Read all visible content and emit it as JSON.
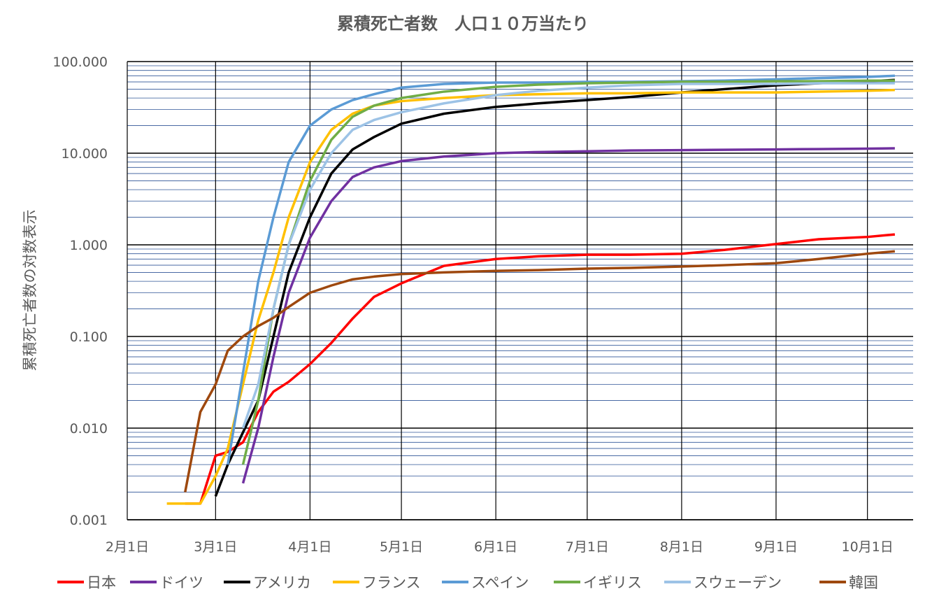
{
  "chart_data": {
    "type": "line",
    "title": "累積死亡者数　人口１０万当たり",
    "y_label": "累積死亡者数の対数表示",
    "log_scale": true,
    "grid": true,
    "legend_position": "bottom",
    "xlim": [
      "02-01",
      "10-16"
    ],
    "xticks": [
      {
        "value": "02-01",
        "label": "2月1日"
      },
      {
        "value": "03-01",
        "label": "3月1日"
      },
      {
        "value": "04-01",
        "label": "4月1日"
      },
      {
        "value": "05-01",
        "label": "5月1日"
      },
      {
        "value": "06-01",
        "label": "6月1日"
      },
      {
        "value": "07-01",
        "label": "7月1日"
      },
      {
        "value": "08-01",
        "label": "8月1日"
      },
      {
        "value": "09-01",
        "label": "9月1日"
      },
      {
        "value": "10-01",
        "label": "10月1日"
      }
    ],
    "ylim": [
      0.001,
      100
    ],
    "yticks": [
      {
        "value": 0.001,
        "label": "0.001"
      },
      {
        "value": 0.01,
        "label": "0.010"
      },
      {
        "value": 0.1,
        "label": "0.100"
      },
      {
        "value": 1,
        "label": "1.000"
      },
      {
        "value": 10,
        "label": "10.000"
      },
      {
        "value": 100,
        "label": "100.000"
      }
    ],
    "yminor": [
      0.002,
      0.003,
      0.004,
      0.005,
      0.006,
      0.007,
      0.008,
      0.009,
      0.02,
      0.03,
      0.04,
      0.05,
      0.06,
      0.07,
      0.08,
      0.09,
      0.2,
      0.3,
      0.4,
      0.5,
      0.6,
      0.7,
      0.8,
      0.9,
      2,
      3,
      4,
      5,
      6,
      7,
      8,
      9,
      20,
      30,
      40,
      50,
      60,
      70,
      80,
      90
    ],
    "x": [
      "02-14",
      "02-20",
      "02-25",
      "03-01",
      "03-05",
      "03-10",
      "03-15",
      "03-20",
      "03-25",
      "04-01",
      "04-08",
      "04-15",
      "04-22",
      "05-01",
      "05-15",
      "06-01",
      "06-15",
      "07-01",
      "07-15",
      "08-01",
      "08-15",
      "09-01",
      "09-15",
      "10-01",
      "10-10"
    ],
    "series": [
      {
        "name": "日本",
        "color": "#ff0000",
        "values": [
          null,
          0.0015,
          0.0015,
          0.005,
          0.0055,
          0.007,
          0.015,
          0.025,
          0.032,
          0.05,
          0.085,
          0.157,
          0.27,
          0.38,
          0.59,
          0.7,
          0.75,
          0.78,
          0.78,
          0.8,
          0.88,
          1.02,
          1.15,
          1.22,
          1.3
        ]
      },
      {
        "name": "ドイツ",
        "color": "#7030a0",
        "values": [
          null,
          null,
          null,
          null,
          null,
          0.0025,
          0.01,
          0.06,
          0.3,
          1.2,
          3,
          5.5,
          7,
          8.2,
          9.2,
          10,
          10.3,
          10.5,
          10.7,
          10.8,
          10.9,
          11,
          11.1,
          11.2,
          11.3
        ]
      },
      {
        "name": "アメリカ",
        "color": "#000000",
        "values": [
          null,
          null,
          null,
          0.0018,
          0.004,
          0.009,
          0.02,
          0.1,
          0.5,
          2,
          6,
          11,
          15,
          21,
          27,
          32,
          35,
          38,
          41,
          46,
          50,
          55,
          58,
          61,
          63
        ]
      },
      {
        "name": "フランス",
        "color": "#ffc000",
        "values": [
          0.0015,
          0.0015,
          0.0015,
          0.003,
          0.006,
          0.03,
          0.15,
          0.5,
          2,
          8,
          18,
          27,
          33,
          37,
          40,
          43,
          44,
          45,
          45,
          46,
          46,
          46,
          47,
          48,
          49
        ]
      },
      {
        "name": "スペイン",
        "color": "#5b9bd5",
        "values": [
          null,
          null,
          null,
          null,
          0.004,
          0.04,
          0.4,
          2,
          8,
          20,
          30,
          38,
          44,
          52,
          57,
          59,
          59,
          60,
          60,
          61,
          62,
          64,
          66,
          68,
          70
        ]
      },
      {
        "name": "イギリス",
        "color": "#70ad47",
        "values": [
          null,
          null,
          null,
          null,
          null,
          0.004,
          0.02,
          0.2,
          1,
          5,
          14,
          25,
          33,
          40,
          47,
          53,
          56,
          58,
          59,
          60,
          60,
          61,
          61,
          62,
          62
        ]
      },
      {
        "name": "スウェーデン",
        "color": "#9dc3e6",
        "values": [
          null,
          null,
          null,
          null,
          null,
          0.01,
          0.03,
          0.2,
          1,
          4,
          10,
          18,
          23,
          28,
          35,
          43,
          48,
          52,
          55,
          57,
          57,
          57,
          58,
          58,
          58
        ]
      },
      {
        "name": "韓国",
        "color": "#9e480e",
        "values": [
          null,
          0.002,
          0.015,
          0.03,
          0.07,
          0.1,
          0.13,
          0.16,
          0.21,
          0.3,
          0.36,
          0.42,
          0.45,
          0.48,
          0.5,
          0.52,
          0.53,
          0.55,
          0.56,
          0.58,
          0.6,
          0.63,
          0.7,
          0.8,
          0.85
        ]
      }
    ]
  }
}
